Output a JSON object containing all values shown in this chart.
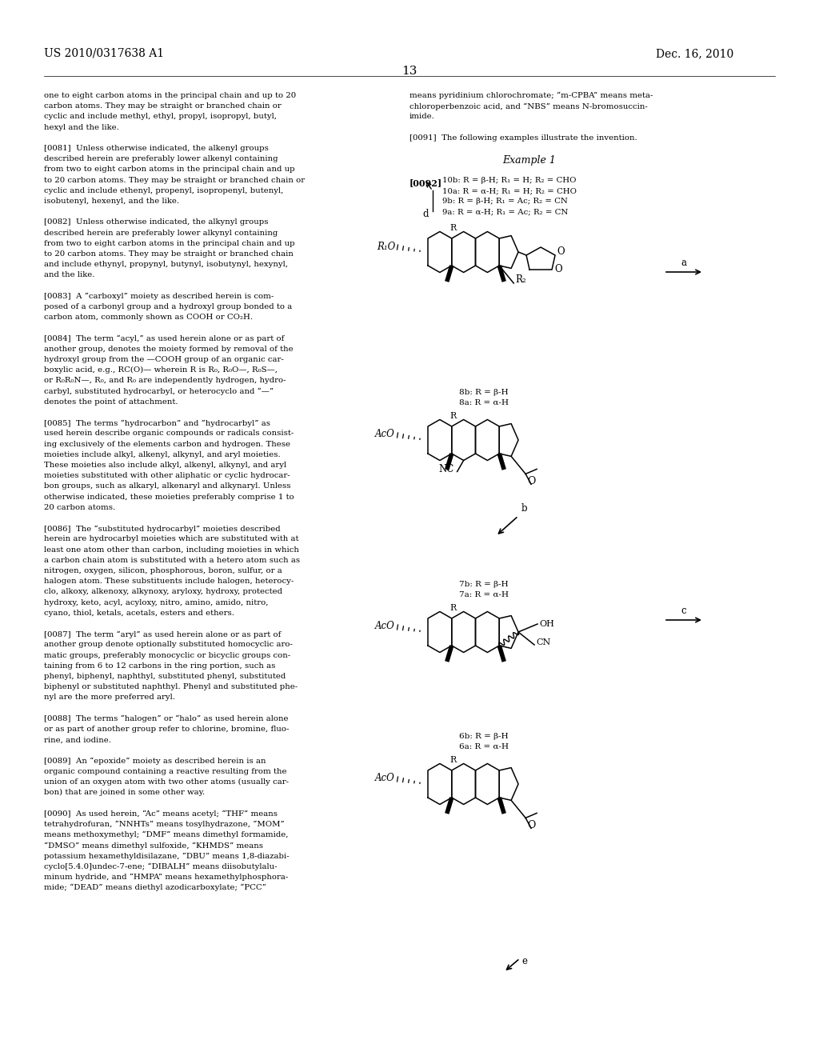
{
  "page_number": "13",
  "patent_number": "US 2010/0317638 A1",
  "patent_date": "Dec. 16, 2010",
  "bg_color": "#ffffff",
  "text_color": "#000000",
  "left_column_text": [
    "one to eight carbon atoms in the principal chain and up to 20",
    "carbon atoms. They may be straight or branched chain or",
    "cyclic and include methyl, ethyl, propyl, isopropyl, butyl,",
    "hexyl and the like.",
    "",
    "[0081]  Unless otherwise indicated, the alkenyl groups",
    "described herein are preferably lower alkenyl containing",
    "from two to eight carbon atoms in the principal chain and up",
    "to 20 carbon atoms. They may be straight or branched chain or",
    "cyclic and include ethenyl, propenyl, isopropenyl, butenyl,",
    "isobutenyl, hexenyl, and the like.",
    "",
    "[0082]  Unless otherwise indicated, the alkynyl groups",
    "described herein are preferably lower alkynyl containing",
    "from two to eight carbon atoms in the principal chain and up",
    "to 20 carbon atoms. They may be straight or branched chain",
    "and include ethynyl, propynyl, butynyl, isobutynyl, hexynyl,",
    "and the like.",
    "",
    "[0083]  A “carboxyl” moiety as described herein is com-",
    "posed of a carbonyl group and a hydroxyl group bonded to a",
    "carbon atom, commonly shown as COOH or CO₂H.",
    "",
    "[0084]  The term “acyl,” as used herein alone or as part of",
    "another group, denotes the moiety formed by removal of the",
    "hydroxyl group from the —COOH group of an organic car-",
    "boxylic acid, e.g., RC(O)— wherein R is R₀, R₀O—, R₀S—,",
    "or R₀R₀N—, R₀, and R₀ are independently hydrogen, hydro-",
    "carbyl, substituted hydrocarbyl, or heterocyclo and “—”",
    "denotes the point of attachment.",
    "",
    "[0085]  The terms “hydrocarbon” and “hydrocarbyl” as",
    "used herein describe organic compounds or radicals consist-",
    "ing exclusively of the elements carbon and hydrogen. These",
    "moieties include alkyl, alkenyl, alkynyl, and aryl moieties.",
    "These moieties also include alkyl, alkenyl, alkynyl, and aryl",
    "moieties substituted with other aliphatic or cyclic hydrocar-",
    "bon groups, such as alkaryl, alkenaryl and alkynaryl. Unless",
    "otherwise indicated, these moieties preferably comprise 1 to",
    "20 carbon atoms.",
    "",
    "[0086]  The “substituted hydrocarbyl” moieties described",
    "herein are hydrocarbyl moieties which are substituted with at",
    "least one atom other than carbon, including moieties in which",
    "a carbon chain atom is substituted with a hetero atom such as",
    "nitrogen, oxygen, silicon, phosphorous, boron, sulfur, or a",
    "halogen atom. These substituents include halogen, heterocy-",
    "clo, alkoxy, alkenoxy, alkynoxy, aryloxy, hydroxy, protected",
    "hydroxy, keto, acyl, acyloxy, nitro, amino, amido, nitro,",
    "cyano, thiol, ketals, acetals, esters and ethers.",
    "",
    "[0087]  The term “aryl” as used herein alone or as part of",
    "another group denote optionally substituted homocyclic aro-",
    "matic groups, preferably monocyclic or bicyclic groups con-",
    "taining from 6 to 12 carbons in the ring portion, such as",
    "phenyl, biphenyl, naphthyl, substituted phenyl, substituted",
    "biphenyl or substituted naphthyl. Phenyl and substituted phe-",
    "nyl are the more preferred aryl.",
    "",
    "[0088]  The terms “halogen” or “halo” as used herein alone",
    "or as part of another group refer to chlorine, bromine, fluo-",
    "rine, and iodine.",
    "",
    "[0089]  An “epoxide” moiety as described herein is an",
    "organic compound containing a reactive resulting from the",
    "union of an oxygen atom with two other atoms (usually car-",
    "bon) that are joined in some other way.",
    "",
    "[0090]  As used herein, “Ac” means acetyl; “THF” means",
    "tetrahydrofuran, “NNHTs” means tosylhydrazone, “MOM”",
    "means methoxymethyl; “DMF” means dimethyl formamide,",
    "“DMSO” means dimethyl sulfoxide, “KHMDS” means",
    "potassium hexamethyldisilazane, “DBU” means 1,8-diazabi-",
    "cyclo[5.4.0]undec-7-ene; “DIBALH” means diisobutylalu-",
    "minum hydride, and “HMPA” means hexamethylphosphora-",
    "mide; “DEAD” means diethyl azodicarboxylate; “PCC”"
  ],
  "right_column_top_text": [
    "means pyridinium chlorochromate; “m-CPBA” means meta-",
    "chloroperbenzoic acid, and “NBS” means N-bromosuccin-",
    "imide.",
    "",
    "[0091]  The following examples illustrate the invention.",
    "",
    "Example 1",
    "",
    "[0092]"
  ],
  "font_size_body": 7.3,
  "font_size_label": 7.5,
  "font_size_header": 10,
  "font_size_pagenum": 11
}
